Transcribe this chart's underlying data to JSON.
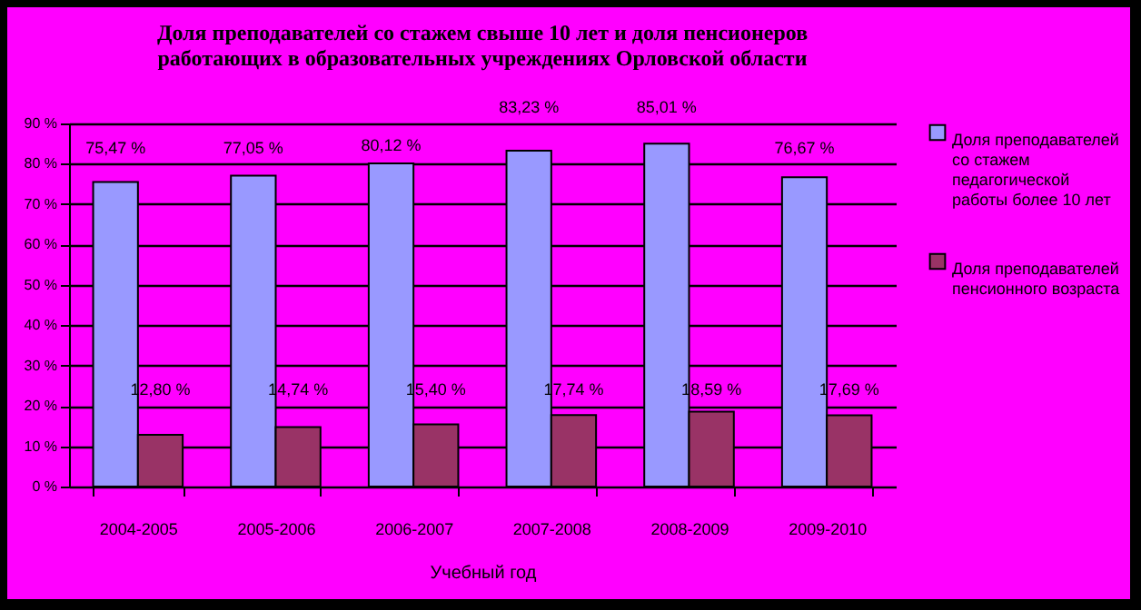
{
  "chart_data": {
    "type": "bar",
    "title": "Доля преподавателей со стажем свыше 10 лет и доля пенсионеров работающих в образовательных учреждениях Орловской области",
    "xlabel": "Учебный год",
    "categories": [
      "2004-2005",
      "2005-2006",
      "2006-2007",
      "2007-2008",
      "2008-2009",
      "2009-2010"
    ],
    "series": [
      {
        "name": "Доля преподавателей со стажем педагогической работы более 10 лет",
        "color": "#9999ff",
        "values": [
          75.47,
          77.05,
          80.12,
          83.23,
          85.01,
          76.67
        ],
        "value_labels": [
          "75,47 %",
          "77,05 %",
          "80,12 %",
          "83,23 %",
          "85,01 %",
          "76,67 %"
        ]
      },
      {
        "name": "Доля преподавателей пенсионного возраста",
        "color": "#993366",
        "values": [
          12.8,
          14.74,
          15.4,
          17.74,
          18.59,
          17.69
        ],
        "value_labels": [
          "12,80 %",
          "14,74 %",
          "15,40 %",
          "17,74 %",
          "18,59 %",
          "17,69 %"
        ]
      }
    ],
    "ylim": [
      0,
      90
    ],
    "yticks": [
      {
        "value": 0,
        "label": "0 %"
      },
      {
        "value": 10,
        "label": "10 %"
      },
      {
        "value": 20,
        "label": "20 %"
      },
      {
        "value": 30,
        "label": "30 %"
      },
      {
        "value": 40,
        "label": "40 %"
      },
      {
        "value": 50,
        "label": "50 %"
      },
      {
        "value": 60,
        "label": "60 %"
      },
      {
        "value": 70,
        "label": "70 %"
      },
      {
        "value": 80,
        "label": "80 %"
      },
      {
        "value": 90,
        "label": "90 %"
      }
    ],
    "grid": "y",
    "legend": "right"
  }
}
